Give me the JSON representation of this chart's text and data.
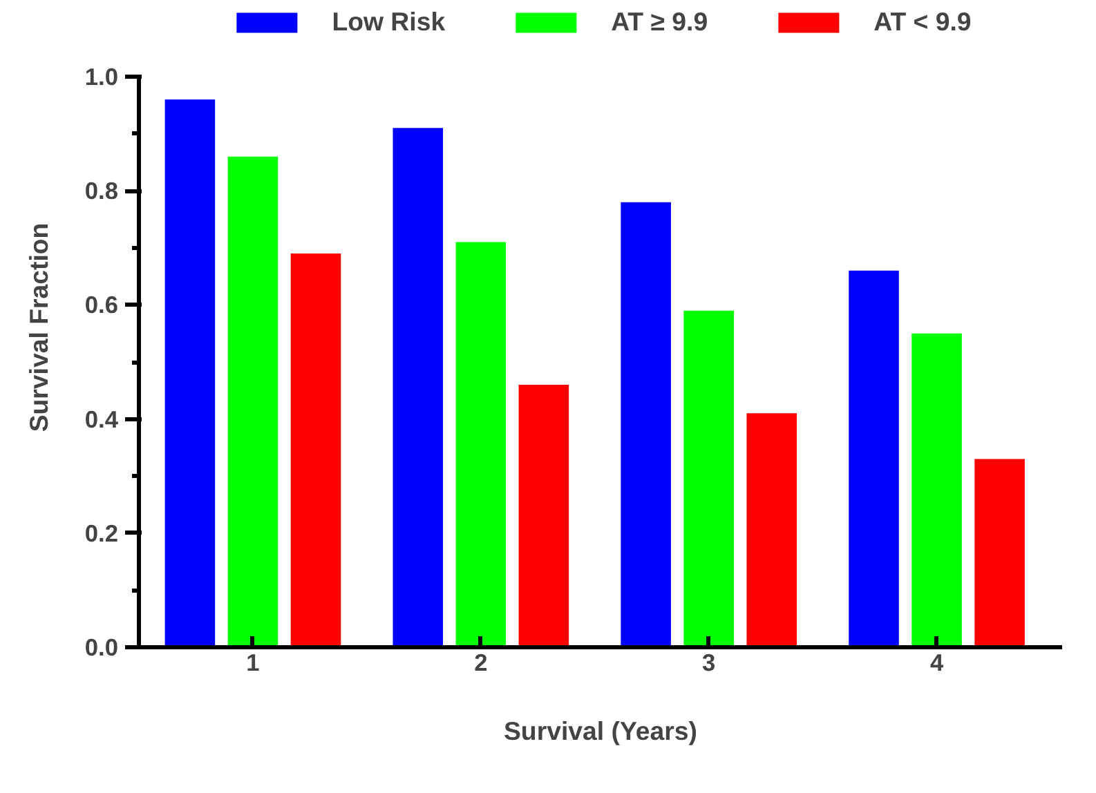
{
  "chart_data": {
    "type": "bar",
    "xlabel": "Survival (Years)",
    "ylabel": "Survival Fraction",
    "categories": [
      "1",
      "2",
      "3",
      "4"
    ],
    "series": [
      {
        "name": "Low Risk",
        "color": "#0000ff",
        "values": [
          0.96,
          0.91,
          0.78,
          0.66
        ]
      },
      {
        "name": "AT ≥ 9.9",
        "color": "#00ff00",
        "values": [
          0.86,
          0.71,
          0.59,
          0.55
        ]
      },
      {
        "name": "AT < 9.9",
        "color": "#ff0000",
        "values": [
          0.69,
          0.46,
          0.41,
          0.33
        ]
      }
    ],
    "ylim": [
      0,
      1.0
    ],
    "yticks": [
      {
        "value": 0,
        "label": "0.0"
      },
      {
        "value": 0.2,
        "label": "0.2"
      },
      {
        "value": 0.4,
        "label": "0.4"
      },
      {
        "value": 0.6,
        "label": "0.6"
      },
      {
        "value": 0.8,
        "label": "0.8"
      },
      {
        "value": 1.0,
        "label": "1.0"
      }
    ],
    "grid": false,
    "legend": "top"
  }
}
